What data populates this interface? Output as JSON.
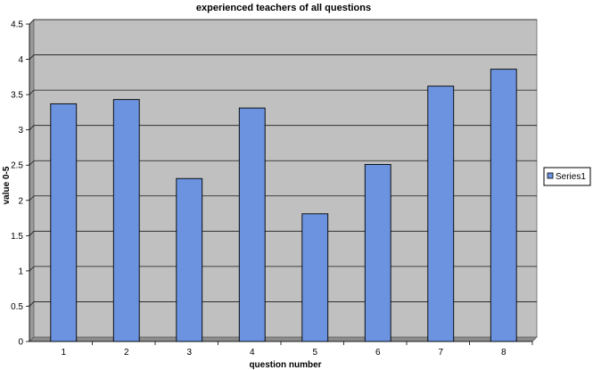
{
  "chart_data": {
    "type": "bar",
    "title": "experienced teachers of all questions",
    "xlabel": "question number",
    "ylabel": "value 0-5",
    "categories": [
      "1",
      "2",
      "3",
      "4",
      "5",
      "6",
      "7",
      "8"
    ],
    "series": [
      {
        "name": "Series1",
        "values": [
          3.37,
          3.43,
          2.31,
          3.31,
          1.81,
          2.51,
          3.62,
          3.86
        ],
        "color": "#6c93e0"
      }
    ],
    "ylim": [
      0,
      4.5
    ],
    "yticks": [
      "0",
      "0.5",
      "1",
      "1.5",
      "2",
      "2.5",
      "3",
      "3.5",
      "4",
      "4.5"
    ],
    "grid": true,
    "legend_position": "right",
    "plot_background": "#c0c0c0"
  }
}
